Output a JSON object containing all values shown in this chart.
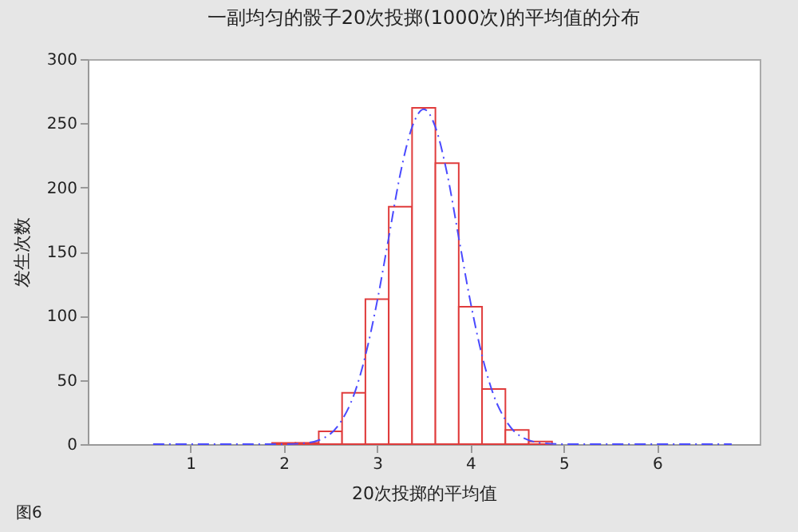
{
  "chart_data": {
    "type": "histogram",
    "title": "一副均匀的骰子20次投掷(1000次)的平均值的分布",
    "xlabel": "20次投掷的平均值",
    "ylabel": "发生次数",
    "annotations": [
      "图6"
    ],
    "xlim": [
      -0.1,
      7.1
    ],
    "xticks": [
      1,
      2,
      3,
      4,
      5,
      6
    ],
    "ylim": [
      0,
      300
    ],
    "yticks": [
      0,
      50,
      100,
      150,
      200,
      250,
      300
    ],
    "series": [
      {
        "color": "#e03c3c",
        "bins": [
          1.875,
          2.125,
          2.375,
          2.625,
          2.875,
          3.125,
          3.375,
          3.625,
          3.875,
          4.125,
          4.375,
          4.625,
          4.875
        ],
        "values": [
          1,
          1,
          10,
          40,
          113,
          185,
          262,
          219,
          107,
          43,
          11,
          2
        ]
      },
      {
        "type": "line",
        "color": "#4a4aff",
        "line_style": "dashed",
        "x": [
          0.6,
          1,
          1.5,
          2,
          2.25,
          2.5,
          2.625,
          2.75,
          2.875,
          3,
          3.125,
          3.25,
          3.375,
          3.5,
          3.625,
          3.75,
          3.875,
          4,
          4.125,
          4.25,
          4.375,
          4.5,
          4.75,
          5,
          5.5,
          6,
          6.8
        ],
        "values": [
          0,
          0,
          0,
          0,
          1,
          8,
          19,
          38,
          69,
          111,
          161,
          211,
          247,
          261,
          247,
          211,
          161,
          111,
          69,
          38,
          19,
          8,
          1,
          0,
          0,
          0,
          0
        ]
      }
    ]
  }
}
